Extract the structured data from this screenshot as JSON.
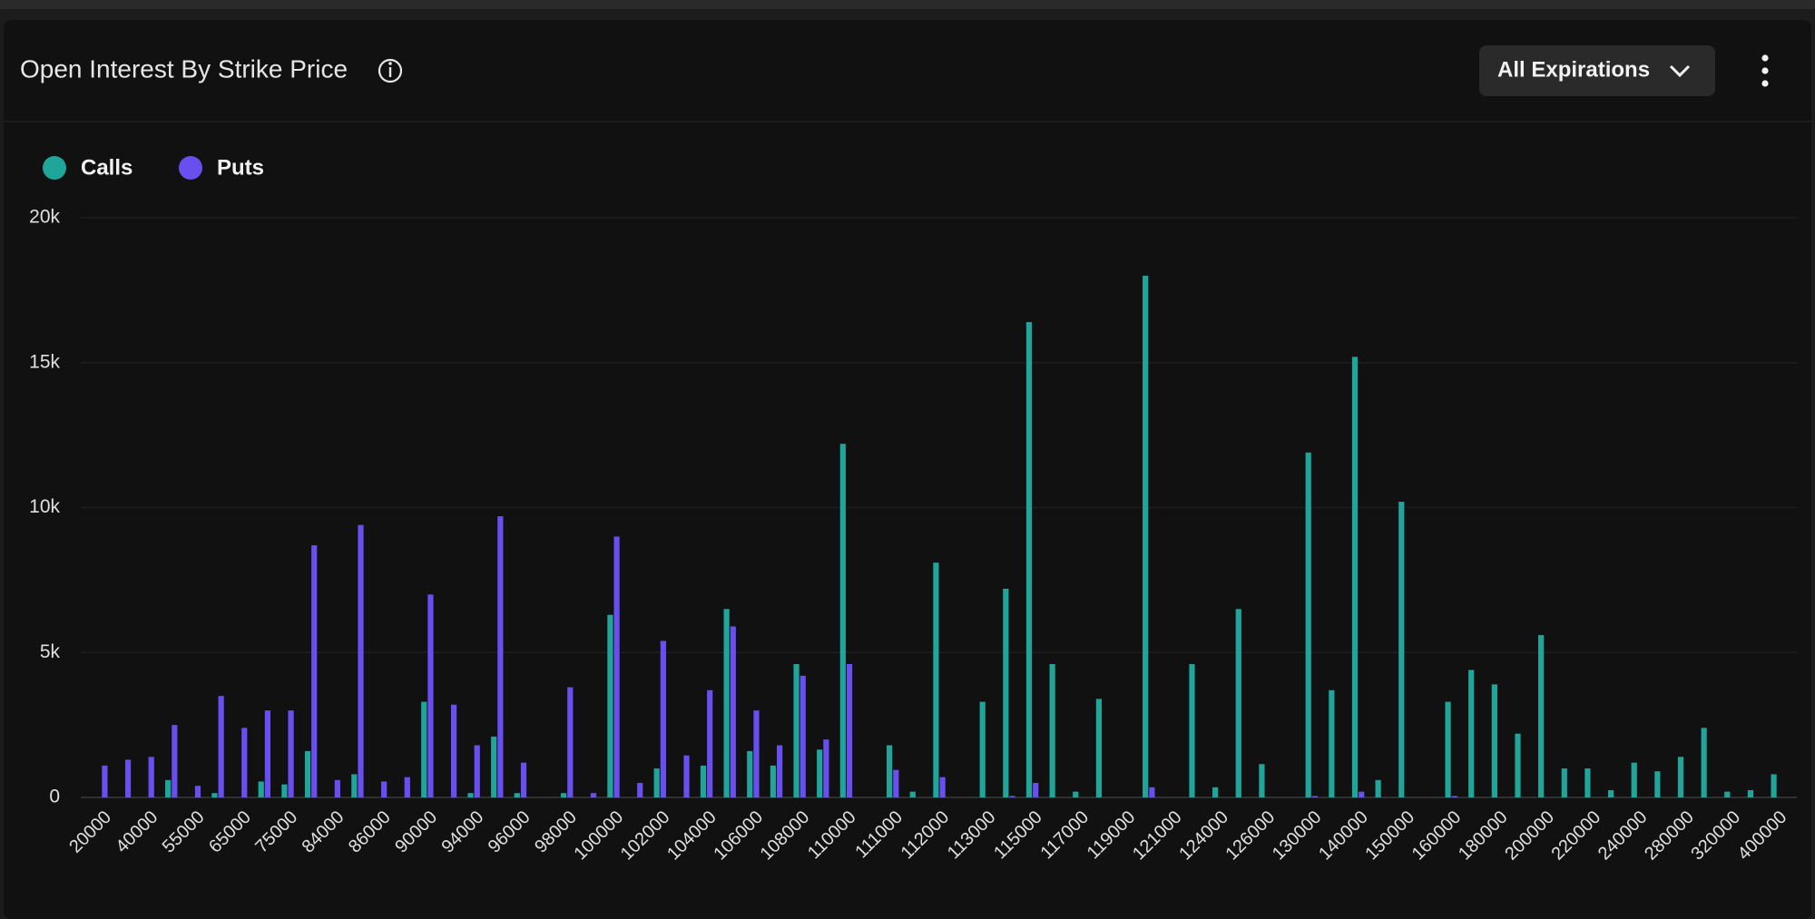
{
  "chart_data": {
    "type": "bar",
    "title": "Open Interest By Strike Price",
    "categories": [
      "20000",
      null,
      "40000",
      null,
      "55000",
      null,
      "65000",
      null,
      "75000",
      null,
      "84000",
      null,
      "86000",
      null,
      "90000",
      null,
      "94000",
      null,
      "96000",
      null,
      "98000",
      null,
      "100000",
      null,
      "102000",
      null,
      "104000",
      null,
      "106000",
      null,
      "108000",
      null,
      "110000",
      null,
      "111000",
      null,
      "112000",
      null,
      "113000",
      null,
      "115000",
      null,
      "117000",
      null,
      "119000",
      null,
      "121000",
      null,
      "124000",
      null,
      "126000",
      null,
      "130000",
      null,
      "140000",
      null,
      "150000",
      null,
      "160000",
      null,
      "180000",
      null,
      "200000",
      null,
      "220000",
      null,
      "240000",
      null,
      "280000",
      null,
      "320000",
      null,
      "400000"
    ],
    "series": [
      {
        "name": "Calls",
        "color": "#1fa59a",
        "values": [
          0,
          0,
          0,
          600,
          0,
          150,
          0,
          550,
          450,
          1600,
          0,
          800,
          0,
          0,
          3300,
          0,
          150,
          2100,
          150,
          0,
          150,
          0,
          6300,
          0,
          1000,
          0,
          1100,
          6500,
          1600,
          1100,
          4600,
          1650,
          12200,
          0,
          1800,
          200,
          8100,
          0,
          3300,
          7200,
          16400,
          4600,
          200,
          3400,
          0,
          18000,
          0,
          4600,
          350,
          6500,
          1150,
          0,
          11900,
          3700,
          15200,
          600,
          10200,
          0,
          3300,
          4400,
          3900,
          2200,
          5600,
          1000,
          1000,
          250,
          1200,
          900,
          1400,
          2400,
          200,
          250,
          800
        ]
      },
      {
        "name": "Puts",
        "color": "#6a4ff0",
        "values": [
          1100,
          1300,
          1400,
          2500,
          400,
          3500,
          2400,
          3000,
          3000,
          8700,
          600,
          9400,
          550,
          700,
          7000,
          3200,
          1800,
          9700,
          1200,
          0,
          3800,
          150,
          9000,
          500,
          5400,
          1450,
          3700,
          5900,
          3000,
          1800,
          4200,
          2000,
          4600,
          0,
          950,
          0,
          700,
          0,
          0,
          50,
          500,
          0,
          0,
          0,
          0,
          350,
          0,
          0,
          0,
          0,
          0,
          0,
          50,
          0,
          200,
          0,
          0,
          0,
          50,
          0,
          0,
          0,
          0,
          0,
          0,
          0,
          0,
          0,
          0,
          0,
          0,
          0,
          0
        ]
      }
    ],
    "ylim": [
      0,
      20000
    ],
    "yticks": [
      0,
      {
        "value": 5000,
        "label": "5k"
      },
      {
        "value": 10000,
        "label": "10k"
      },
      {
        "value": 15000,
        "label": "15k"
      },
      {
        "value": 20000,
        "label": "20k"
      }
    ],
    "grid": true
  },
  "controls": {
    "dropdown": "All Expirations"
  }
}
